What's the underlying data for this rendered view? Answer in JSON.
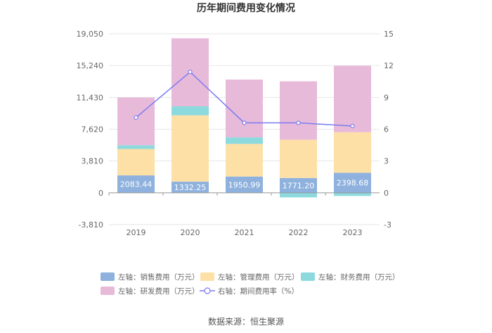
{
  "chart_data": {
    "type": "bar",
    "stacked": true,
    "title": "历年期间费用变化情况",
    "categories": [
      "2019",
      "2020",
      "2021",
      "2022",
      "2023"
    ],
    "left_axis": {
      "ticks": [
        "19,050",
        "15,240",
        "11,430",
        "7,620",
        "3,810",
        "0",
        "-3,810"
      ],
      "min": -3810,
      "max": 19050
    },
    "right_axis": {
      "ticks": [
        "15",
        "12",
        "9",
        "6",
        "3",
        "0",
        "-3"
      ],
      "min": -3,
      "max": 15
    },
    "series": [
      {
        "name": "左轴：销售费用（万元）",
        "key": "sales",
        "axis": "left",
        "color": "#8eb1dd",
        "values": [
          2083.44,
          1332.25,
          1950.99,
          1771.2,
          2398.68
        ],
        "labels": [
          "2083.44",
          "1332.25",
          "1950.99",
          "1771.20",
          "2398.68"
        ]
      },
      {
        "name": "左轴：管理费用（万元）",
        "key": "mgmt",
        "axis": "left",
        "color": "#fde0a6",
        "values": [
          3170,
          7950,
          3910,
          4590,
          4860
        ]
      },
      {
        "name": "左轴：财务费用（万元）",
        "key": "fin",
        "axis": "left",
        "color": "#8cdade",
        "values": [
          450,
          1080,
          780,
          -550,
          -380
        ]
      },
      {
        "name": "左轴：研发费用（万元）",
        "key": "rd",
        "axis": "left",
        "color": "#e8bada",
        "values": [
          5710,
          8150,
          6920,
          7000,
          7970
        ]
      },
      {
        "name": "右轴：期间费用率（%）",
        "key": "rate",
        "axis": "right",
        "type": "line",
        "color": "#7a7cf0",
        "values": [
          7.1,
          11.4,
          6.6,
          6.6,
          6.3
        ]
      }
    ]
  },
  "source": "数据来源：恒生聚源"
}
